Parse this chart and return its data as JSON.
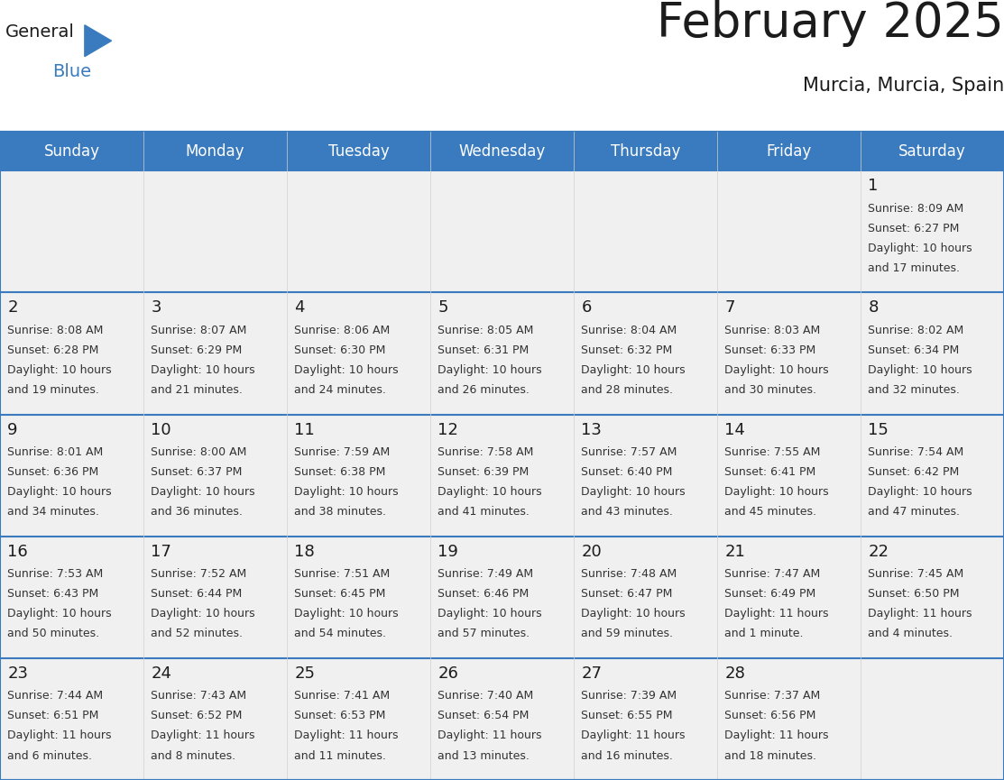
{
  "title": "February 2025",
  "subtitle": "Murcia, Murcia, Spain",
  "header_bg": "#3a7bbf",
  "header_text_color": "#ffffff",
  "cell_bg": "#f0f0f0",
  "cell_bg_white": "#ffffff",
  "border_color": "#3a7bbf",
  "grid_color": "#cccccc",
  "day_headers": [
    "Sunday",
    "Monday",
    "Tuesday",
    "Wednesday",
    "Thursday",
    "Friday",
    "Saturday"
  ],
  "days": [
    {
      "day": 1,
      "col": 6,
      "row": 0,
      "sunrise": "8:09 AM",
      "sunset": "6:27 PM",
      "daylight_line1": "Daylight: 10 hours",
      "daylight_line2": "and 17 minutes."
    },
    {
      "day": 2,
      "col": 0,
      "row": 1,
      "sunrise": "8:08 AM",
      "sunset": "6:28 PM",
      "daylight_line1": "Daylight: 10 hours",
      "daylight_line2": "and 19 minutes."
    },
    {
      "day": 3,
      "col": 1,
      "row": 1,
      "sunrise": "8:07 AM",
      "sunset": "6:29 PM",
      "daylight_line1": "Daylight: 10 hours",
      "daylight_line2": "and 21 minutes."
    },
    {
      "day": 4,
      "col": 2,
      "row": 1,
      "sunrise": "8:06 AM",
      "sunset": "6:30 PM",
      "daylight_line1": "Daylight: 10 hours",
      "daylight_line2": "and 24 minutes."
    },
    {
      "day": 5,
      "col": 3,
      "row": 1,
      "sunrise": "8:05 AM",
      "sunset": "6:31 PM",
      "daylight_line1": "Daylight: 10 hours",
      "daylight_line2": "and 26 minutes."
    },
    {
      "day": 6,
      "col": 4,
      "row": 1,
      "sunrise": "8:04 AM",
      "sunset": "6:32 PM",
      "daylight_line1": "Daylight: 10 hours",
      "daylight_line2": "and 28 minutes."
    },
    {
      "day": 7,
      "col": 5,
      "row": 1,
      "sunrise": "8:03 AM",
      "sunset": "6:33 PM",
      "daylight_line1": "Daylight: 10 hours",
      "daylight_line2": "and 30 minutes."
    },
    {
      "day": 8,
      "col": 6,
      "row": 1,
      "sunrise": "8:02 AM",
      "sunset": "6:34 PM",
      "daylight_line1": "Daylight: 10 hours",
      "daylight_line2": "and 32 minutes."
    },
    {
      "day": 9,
      "col": 0,
      "row": 2,
      "sunrise": "8:01 AM",
      "sunset": "6:36 PM",
      "daylight_line1": "Daylight: 10 hours",
      "daylight_line2": "and 34 minutes."
    },
    {
      "day": 10,
      "col": 1,
      "row": 2,
      "sunrise": "8:00 AM",
      "sunset": "6:37 PM",
      "daylight_line1": "Daylight: 10 hours",
      "daylight_line2": "and 36 minutes."
    },
    {
      "day": 11,
      "col": 2,
      "row": 2,
      "sunrise": "7:59 AM",
      "sunset": "6:38 PM",
      "daylight_line1": "Daylight: 10 hours",
      "daylight_line2": "and 38 minutes."
    },
    {
      "day": 12,
      "col": 3,
      "row": 2,
      "sunrise": "7:58 AM",
      "sunset": "6:39 PM",
      "daylight_line1": "Daylight: 10 hours",
      "daylight_line2": "and 41 minutes."
    },
    {
      "day": 13,
      "col": 4,
      "row": 2,
      "sunrise": "7:57 AM",
      "sunset": "6:40 PM",
      "daylight_line1": "Daylight: 10 hours",
      "daylight_line2": "and 43 minutes."
    },
    {
      "day": 14,
      "col": 5,
      "row": 2,
      "sunrise": "7:55 AM",
      "sunset": "6:41 PM",
      "daylight_line1": "Daylight: 10 hours",
      "daylight_line2": "and 45 minutes."
    },
    {
      "day": 15,
      "col": 6,
      "row": 2,
      "sunrise": "7:54 AM",
      "sunset": "6:42 PM",
      "daylight_line1": "Daylight: 10 hours",
      "daylight_line2": "and 47 minutes."
    },
    {
      "day": 16,
      "col": 0,
      "row": 3,
      "sunrise": "7:53 AM",
      "sunset": "6:43 PM",
      "daylight_line1": "Daylight: 10 hours",
      "daylight_line2": "and 50 minutes."
    },
    {
      "day": 17,
      "col": 1,
      "row": 3,
      "sunrise": "7:52 AM",
      "sunset": "6:44 PM",
      "daylight_line1": "Daylight: 10 hours",
      "daylight_line2": "and 52 minutes."
    },
    {
      "day": 18,
      "col": 2,
      "row": 3,
      "sunrise": "7:51 AM",
      "sunset": "6:45 PM",
      "daylight_line1": "Daylight: 10 hours",
      "daylight_line2": "and 54 minutes."
    },
    {
      "day": 19,
      "col": 3,
      "row": 3,
      "sunrise": "7:49 AM",
      "sunset": "6:46 PM",
      "daylight_line1": "Daylight: 10 hours",
      "daylight_line2": "and 57 minutes."
    },
    {
      "day": 20,
      "col": 4,
      "row": 3,
      "sunrise": "7:48 AM",
      "sunset": "6:47 PM",
      "daylight_line1": "Daylight: 10 hours",
      "daylight_line2": "and 59 minutes."
    },
    {
      "day": 21,
      "col": 5,
      "row": 3,
      "sunrise": "7:47 AM",
      "sunset": "6:49 PM",
      "daylight_line1": "Daylight: 11 hours",
      "daylight_line2": "and 1 minute."
    },
    {
      "day": 22,
      "col": 6,
      "row": 3,
      "sunrise": "7:45 AM",
      "sunset": "6:50 PM",
      "daylight_line1": "Daylight: 11 hours",
      "daylight_line2": "and 4 minutes."
    },
    {
      "day": 23,
      "col": 0,
      "row": 4,
      "sunrise": "7:44 AM",
      "sunset": "6:51 PM",
      "daylight_line1": "Daylight: 11 hours",
      "daylight_line2": "and 6 minutes."
    },
    {
      "day": 24,
      "col": 1,
      "row": 4,
      "sunrise": "7:43 AM",
      "sunset": "6:52 PM",
      "daylight_line1": "Daylight: 11 hours",
      "daylight_line2": "and 8 minutes."
    },
    {
      "day": 25,
      "col": 2,
      "row": 4,
      "sunrise": "7:41 AM",
      "sunset": "6:53 PM",
      "daylight_line1": "Daylight: 11 hours",
      "daylight_line2": "and 11 minutes."
    },
    {
      "day": 26,
      "col": 3,
      "row": 4,
      "sunrise": "7:40 AM",
      "sunset": "6:54 PM",
      "daylight_line1": "Daylight: 11 hours",
      "daylight_line2": "and 13 minutes."
    },
    {
      "day": 27,
      "col": 4,
      "row": 4,
      "sunrise": "7:39 AM",
      "sunset": "6:55 PM",
      "daylight_line1": "Daylight: 11 hours",
      "daylight_line2": "and 16 minutes."
    },
    {
      "day": 28,
      "col": 5,
      "row": 4,
      "sunrise": "7:37 AM",
      "sunset": "6:56 PM",
      "daylight_line1": "Daylight: 11 hours",
      "daylight_line2": "and 18 minutes."
    }
  ],
  "title_fontsize": 38,
  "subtitle_fontsize": 15,
  "header_fontsize": 12,
  "day_num_fontsize": 13,
  "cell_text_fontsize": 9
}
